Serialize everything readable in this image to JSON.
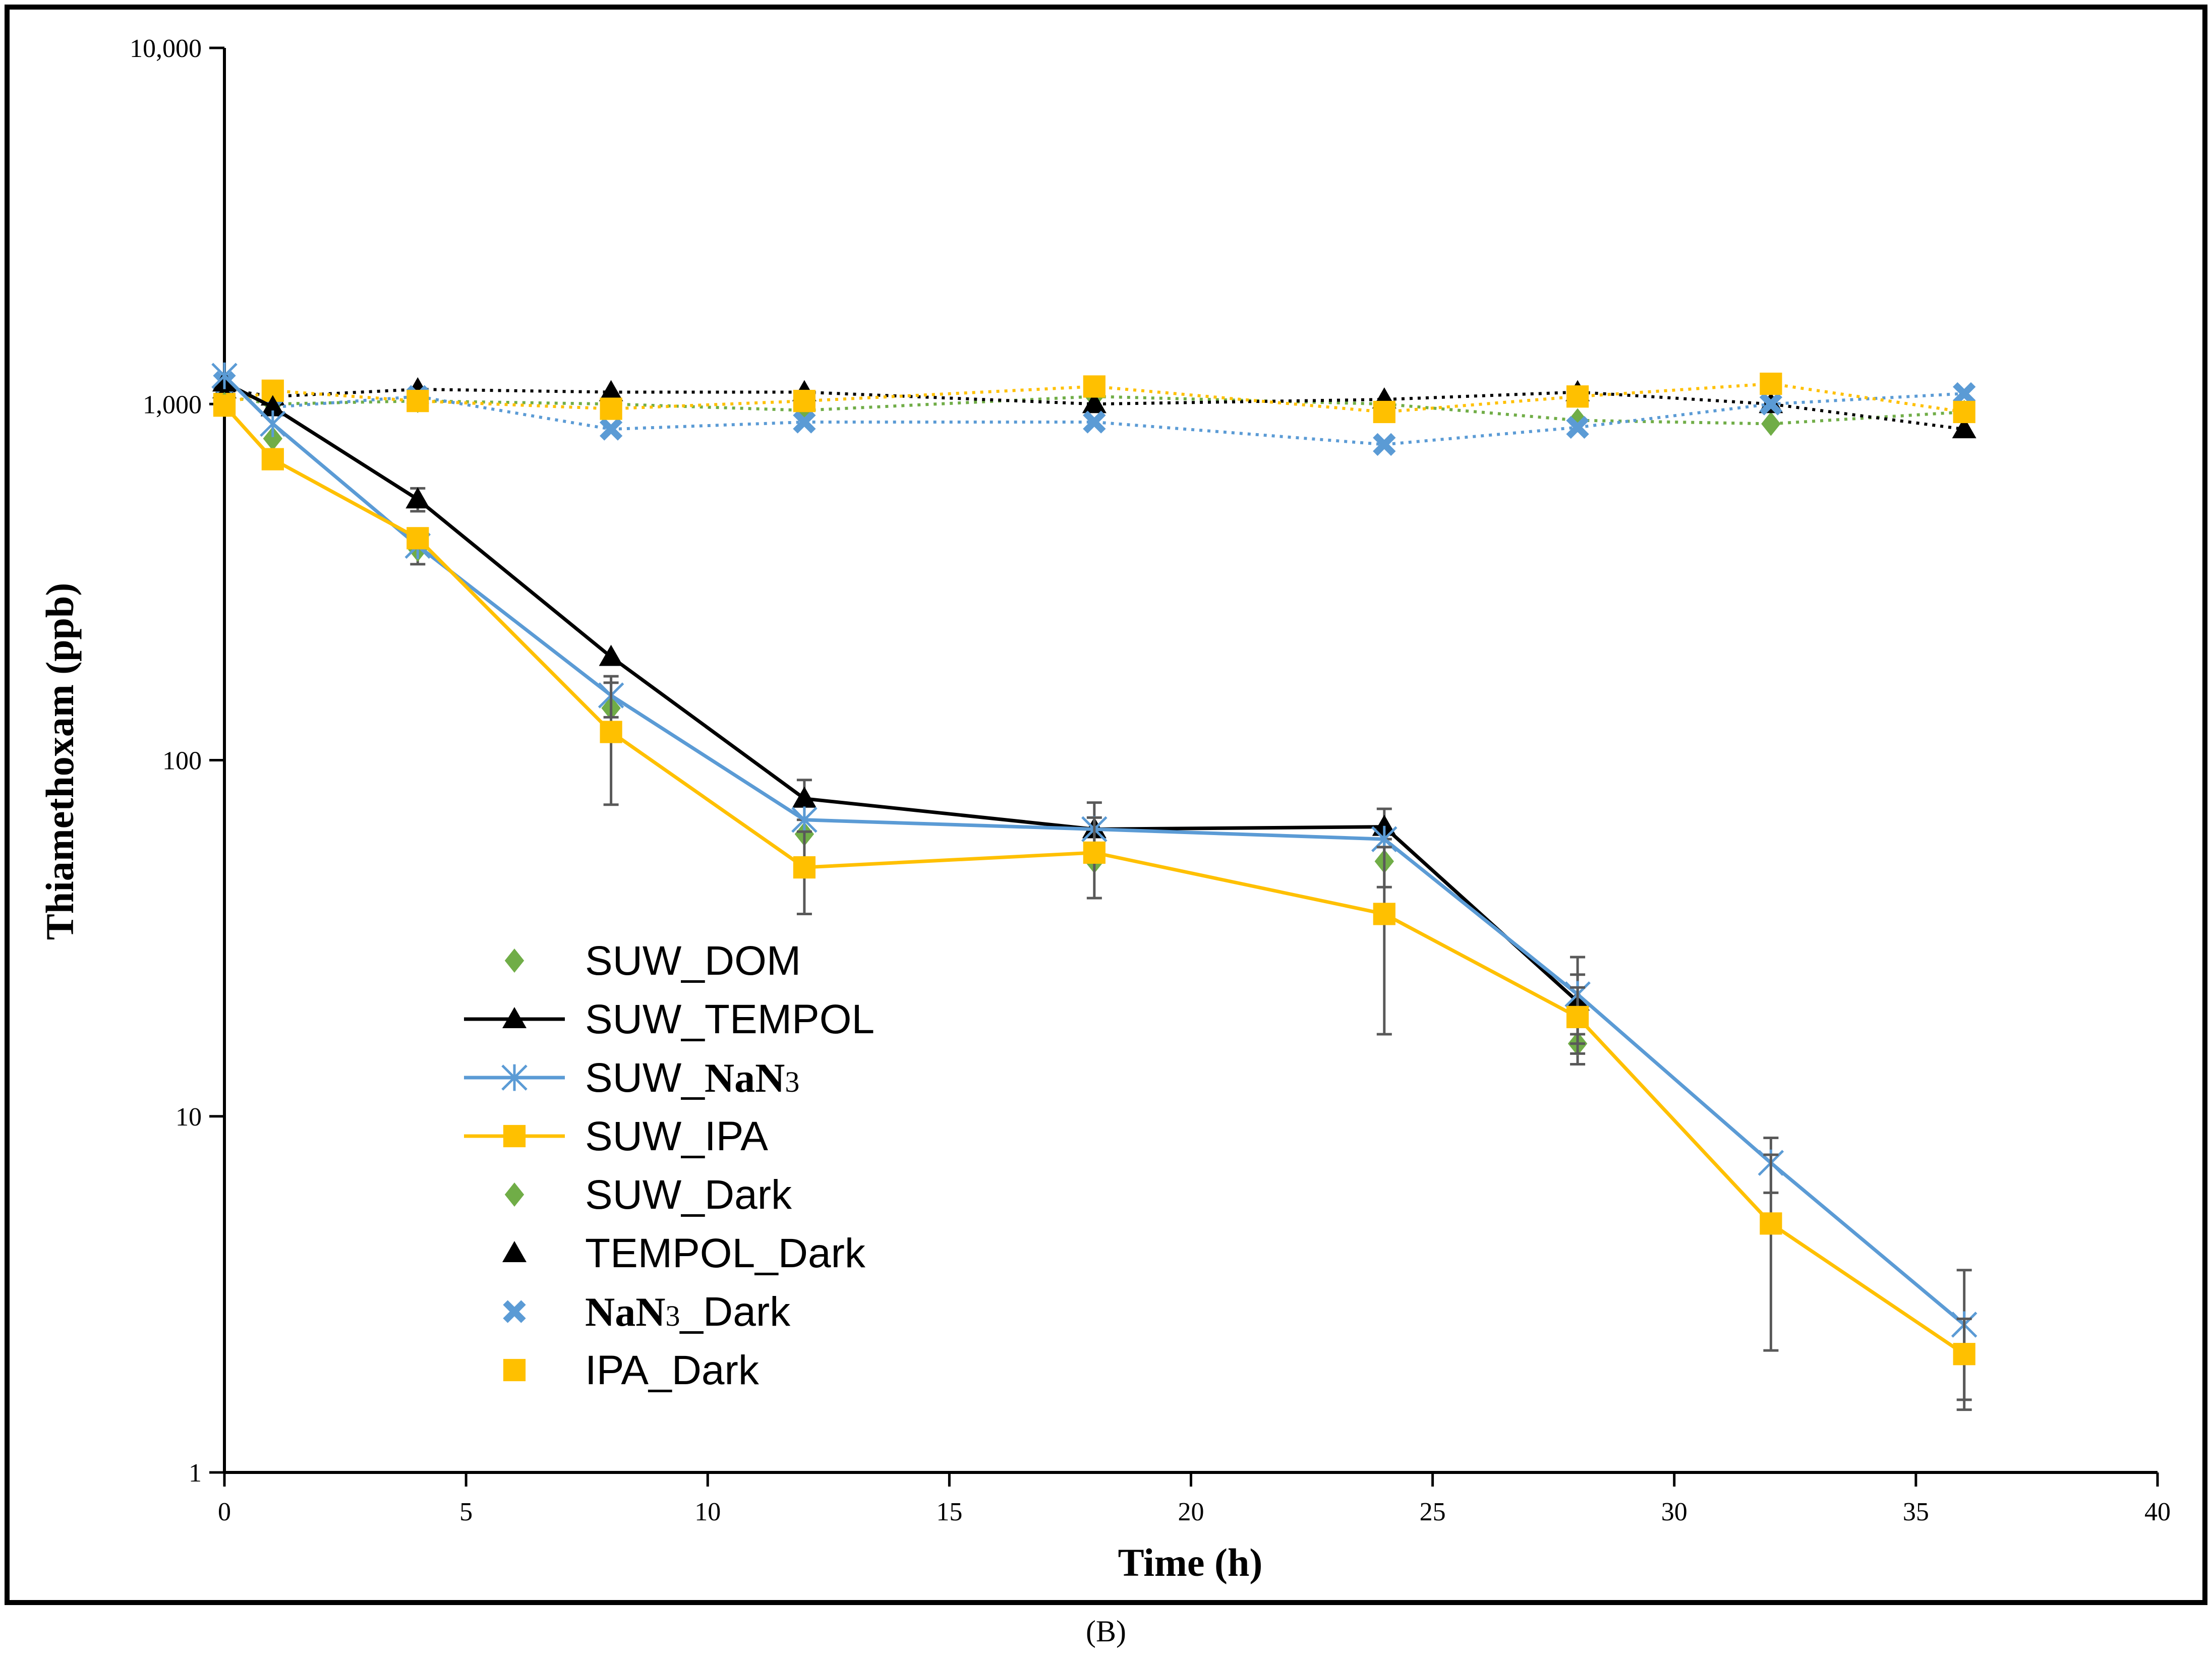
{
  "chart_data": {
    "type": "line",
    "title": "",
    "xlabel": "Time (h)",
    "ylabel": "Thiamethoxam (ppb)",
    "yscale": "log",
    "xlim": [
      0,
      40
    ],
    "ylim": [
      1,
      10000
    ],
    "xticks": [
      0,
      5,
      10,
      15,
      20,
      25,
      30,
      35,
      40
    ],
    "xtick_labels": [
      "0",
      "5",
      "10",
      "15",
      "20",
      "25",
      "30",
      "35",
      "40"
    ],
    "yticks": [
      1,
      10,
      100,
      1000,
      10000
    ],
    "ytick_labels": [
      "1",
      "10",
      "100",
      "1,000",
      "10,000"
    ],
    "panel_label": "(B)",
    "grid": false,
    "legend_position": "center-left",
    "series": [
      {
        "name": "SUW_DOM",
        "label_parts": [
          "SUW_DOM"
        ],
        "marker": "diamond",
        "line": "none",
        "color": "#70ad47",
        "x": [
          0,
          1,
          4,
          8,
          12,
          18,
          24,
          28
        ],
        "y": [
          1000,
          800,
          390,
          140,
          62,
          52,
          52,
          16
        ],
        "yerr": [
          null,
          null,
          35,
          null,
          null,
          null,
          8,
          2
        ]
      },
      {
        "name": "SUW_TEMPOL",
        "label_parts": [
          "SUW_TEMPOL"
        ],
        "marker": "triangle",
        "line": "solid",
        "color": "#000000",
        "x": [
          0,
          1,
          4,
          8,
          12,
          18,
          24,
          28
        ],
        "y": [
          1150,
          980,
          540,
          195,
          78,
          64,
          65,
          21
        ],
        "yerr": [
          null,
          null,
          40,
          null,
          10,
          null,
          8,
          4
        ]
      },
      {
        "name": "SUW_NaN3",
        "label_parts": [
          "SUW_",
          "NaN",
          "3"
        ],
        "marker": "asterisk",
        "line": "solid",
        "color": "#5b9bd5",
        "x": [
          0,
          1,
          4,
          8,
          12,
          18,
          24,
          28,
          32,
          36
        ],
        "y": [
          1200,
          880,
          400,
          152,
          68,
          64,
          60,
          22,
          7.4,
          2.6
        ],
        "yerr": [
          null,
          null,
          null,
          20,
          null,
          12,
          null,
          6,
          1.3,
          1.1
        ]
      },
      {
        "name": "SUW_IPA",
        "label_parts": [
          "SUW_IPA"
        ],
        "marker": "square",
        "line": "solid",
        "color": "#ffc000",
        "x": [
          0,
          1,
          4,
          8,
          12,
          18,
          24,
          28,
          32,
          36
        ],
        "y": [
          990,
          700,
          420,
          120,
          50,
          55,
          37,
          19,
          5.0,
          2.15
        ],
        "yerr": [
          null,
          null,
          null,
          45,
          13,
          14,
          20,
          4,
          2.8,
          0.55
        ]
      },
      {
        "name": "SUW_Dark",
        "label_parts": [
          "SUW_Dark"
        ],
        "marker": "diamond",
        "line": "dotted",
        "color": "#70ad47",
        "x": [
          0,
          1,
          4,
          8,
          12,
          18,
          24,
          28,
          32,
          36
        ],
        "y": [
          1050,
          1000,
          1020,
          1000,
          960,
          1050,
          1000,
          900,
          880,
          950
        ],
        "yerr": [
          null,
          null,
          null,
          null,
          null,
          null,
          null,
          null,
          null,
          null
        ]
      },
      {
        "name": "TEMPOL_Dark",
        "label_parts": [
          "TEMPOL_Dark"
        ],
        "marker": "triangle",
        "line": "dotted",
        "color": "#000000",
        "x": [
          0,
          1,
          4,
          8,
          12,
          18,
          24,
          28,
          32,
          36
        ],
        "y": [
          1100,
          1050,
          1100,
          1080,
          1080,
          1000,
          1030,
          1080,
          1000,
          850
        ],
        "yerr": [
          null,
          null,
          null,
          null,
          null,
          null,
          null,
          null,
          null,
          null
        ]
      },
      {
        "name": "NaN3_Dark",
        "label_parts": [
          "",
          "NaN",
          "3",
          "_Dark"
        ],
        "marker": "x",
        "line": "dotted",
        "color": "#5b9bd5",
        "x": [
          0,
          1,
          4,
          8,
          12,
          18,
          24,
          28,
          32,
          36
        ],
        "y": [
          1150,
          980,
          1050,
          850,
          890,
          890,
          770,
          860,
          1000,
          1070
        ],
        "yerr": [
          null,
          null,
          null,
          null,
          null,
          null,
          null,
          null,
          null,
          null
        ]
      },
      {
        "name": "IPA_Dark",
        "label_parts": [
          "IPA_Dark"
        ],
        "marker": "square",
        "line": "dotted",
        "color": "#ffc000",
        "x": [
          0,
          1,
          4,
          8,
          12,
          18,
          24,
          28,
          32,
          36
        ],
        "y": [
          1000,
          1090,
          1020,
          970,
          1020,
          1120,
          950,
          1050,
          1140,
          950
        ],
        "yerr": [
          null,
          null,
          null,
          null,
          null,
          null,
          null,
          null,
          null,
          null
        ]
      }
    ]
  }
}
